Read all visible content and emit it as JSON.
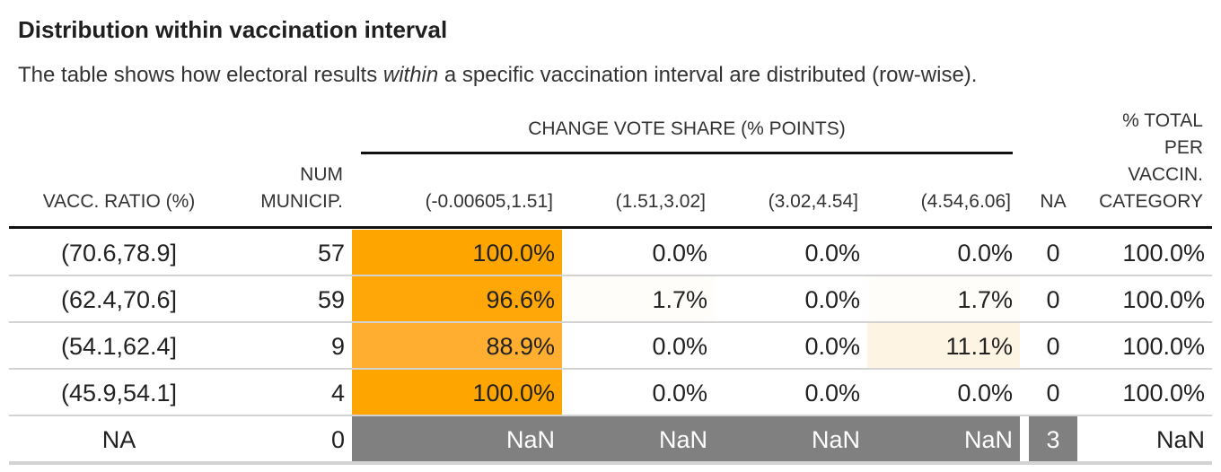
{
  "title": "Distribution within vaccination interval",
  "subtitle": {
    "before": "The table shows how electoral results ",
    "emph": "within",
    "after": " a specific vaccination interval are distributed (row-wise)."
  },
  "spanner": "CHANGE VOTE SHARE (% POINTS)",
  "columns": {
    "vacc": "VACC. RATIO (%)",
    "num": [
      "NUM",
      "MUNICIP."
    ],
    "c1": "(-0.00605,1.51]",
    "c2": "(1.51,3.02]",
    "c3": "(3.02,4.54]",
    "c4": "(4.54,6.06]",
    "na": "NA",
    "total": [
      "% TOTAL",
      "PER",
      "VACCIN.",
      "CATEGORY"
    ]
  },
  "rows": [
    {
      "vacc": "(70.6,78.9]",
      "num": "57",
      "c1": "100.0%",
      "c2": "0.0%",
      "c3": "0.0%",
      "c4": "0.0%",
      "na": "0",
      "total": "100.0%",
      "bg": {
        "c1": "#ffa500",
        "c2": "#ffffff",
        "c3": "#ffffff",
        "c4": "#ffffff",
        "na": "#ffffff"
      }
    },
    {
      "vacc": "(62.4,70.6]",
      "num": "59",
      "c1": "96.6%",
      "c2": "1.7%",
      "c3": "0.0%",
      "c4": "1.7%",
      "na": "0",
      "total": "100.0%",
      "bg": {
        "c1": "#ffa709",
        "c2": "#fffdfa",
        "c3": "#ffffff",
        "c4": "#fffdfa",
        "na": "#ffffff"
      }
    },
    {
      "vacc": "(54.1,62.4]",
      "num": "9",
      "c1": "88.9%",
      "c2": "0.0%",
      "c3": "0.0%",
      "c4": "11.1%",
      "na": "0",
      "total": "100.0%",
      "bg": {
        "c1": "#ffae2f",
        "c2": "#ffffff",
        "c3": "#ffffff",
        "c4": "#fef4e3",
        "na": "#ffffff"
      }
    },
    {
      "vacc": "(45.9,54.1]",
      "num": "4",
      "c1": "100.0%",
      "c2": "0.0%",
      "c3": "0.0%",
      "c4": "0.0%",
      "na": "0",
      "total": "100.0%",
      "bg": {
        "c1": "#ffa500",
        "c2": "#ffffff",
        "c3": "#ffffff",
        "c4": "#ffffff",
        "na": "#ffffff"
      }
    },
    {
      "vacc": "NA",
      "num": "0",
      "c1": "NaN",
      "c2": "NaN",
      "c3": "NaN",
      "c4": "NaN",
      "na": "3",
      "total": "NaN",
      "bg": {
        "c1": "#808080",
        "c2": "#808080",
        "c3": "#808080",
        "c4": "#808080",
        "na": "#808080"
      }
    }
  ]
}
